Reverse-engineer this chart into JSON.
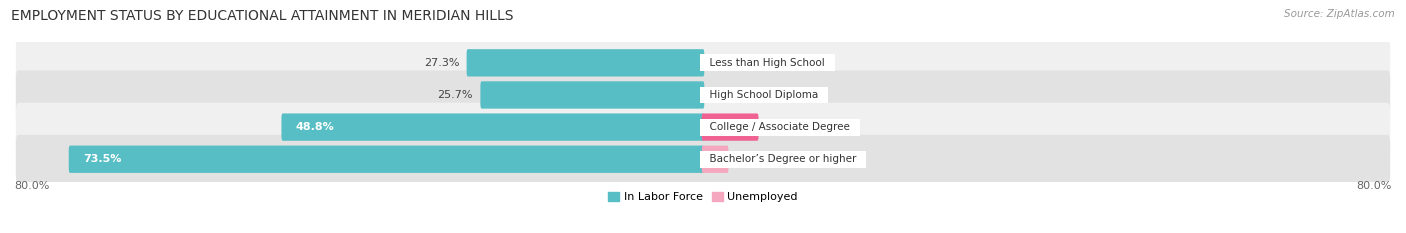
{
  "title": "EMPLOYMENT STATUS BY EDUCATIONAL ATTAINMENT IN MERIDIAN HILLS",
  "source": "Source: ZipAtlas.com",
  "categories": [
    "Less than High School",
    "High School Diploma",
    "College / Associate Degree",
    "Bachelor’s Degree or higher"
  ],
  "labor_force": [
    27.3,
    25.7,
    48.8,
    73.5
  ],
  "unemployed": [
    0.0,
    0.0,
    6.3,
    2.8
  ],
  "labor_color": "#56bec4",
  "unemployed_color_light": "#f4a7bf",
  "unemployed_color_dark": "#f06292",
  "row_bg_color_light": "#f0f0f0",
  "row_bg_color_dark": "#e2e2e2",
  "x_min": -80.0,
  "x_max": 80.0,
  "x_left_label": "80.0%",
  "x_right_label": "80.0%",
  "title_fontsize": 10,
  "label_fontsize": 8,
  "bar_label_fontsize": 8,
  "axis_label_fontsize": 8,
  "source_fontsize": 7.5
}
